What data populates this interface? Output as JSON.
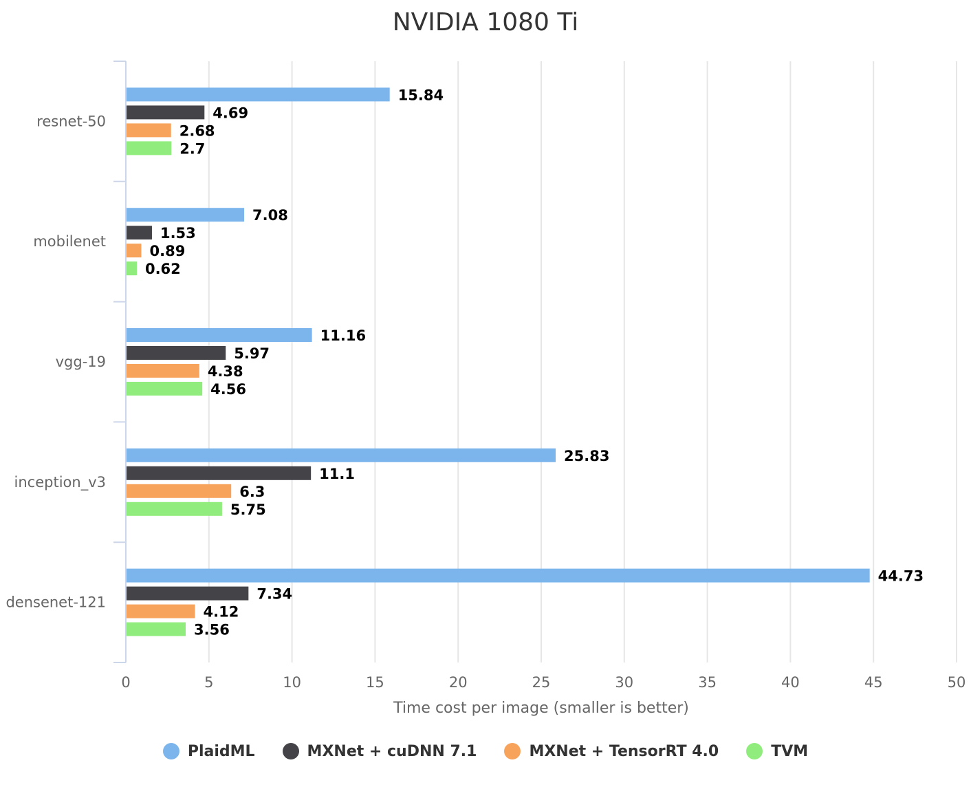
{
  "chart_data": {
    "type": "bar",
    "orientation": "horizontal",
    "title": "NVIDIA 1080 Ti",
    "xlabel": "Time cost per image (smaller is better)",
    "ylabel": "",
    "xlim": [
      0,
      50
    ],
    "xticks": [
      "0",
      "5",
      "10",
      "15",
      "20",
      "25",
      "30",
      "35",
      "40",
      "45",
      "50"
    ],
    "grid": true,
    "legend_position": "bottom",
    "categories": [
      "resnet-50",
      "mobilenet",
      "vgg-19",
      "inception_v3",
      "densenet-121"
    ],
    "series": [
      {
        "name": "PlaidML",
        "color": "#7cb5ec",
        "values": [
          15.84,
          7.08,
          11.16,
          25.83,
          44.73
        ],
        "labels": [
          "15.84",
          "7.08",
          "11.16",
          "25.83",
          "44.73"
        ]
      },
      {
        "name": "MXNet + cuDNN 7.1",
        "color": "#434348",
        "values": [
          4.69,
          1.53,
          5.97,
          11.1,
          7.34
        ],
        "labels": [
          "4.69",
          "1.53",
          "5.97",
          "11.1",
          "7.34"
        ]
      },
      {
        "name": "MXNet + TensorRT 4.0",
        "color": "#f7a35c",
        "values": [
          2.68,
          0.89,
          4.38,
          6.3,
          4.12
        ],
        "labels": [
          "2.68",
          "0.89",
          "4.38",
          "6.3",
          "4.12"
        ]
      },
      {
        "name": "TVM",
        "color": "#90ed7d",
        "values": [
          2.7,
          0.62,
          4.56,
          5.75,
          3.56
        ],
        "labels": [
          "2.7",
          "0.62",
          "4.56",
          "5.75",
          "3.56"
        ]
      }
    ]
  }
}
